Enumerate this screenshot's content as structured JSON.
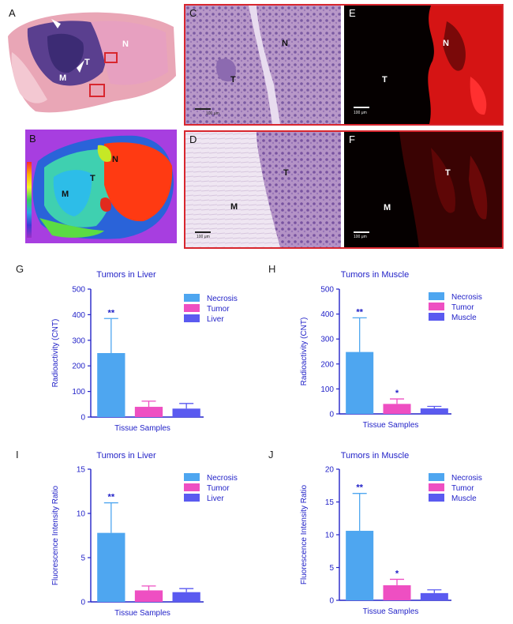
{
  "image_panels": {
    "A": {
      "letter": "A",
      "labels": {
        "N": "N",
        "T": "T",
        "M": "M"
      }
    },
    "B": {
      "letter": "B",
      "labels": {
        "N": "N",
        "T": "T",
        "M": "M"
      }
    },
    "C": {
      "letter": "C",
      "labels": {
        "N": "N",
        "T": "T"
      },
      "scale": "100 μm"
    },
    "D": {
      "letter": "D",
      "labels": {
        "T": "T",
        "M": "M"
      },
      "scale": "100 μm"
    },
    "E": {
      "letter": "E",
      "labels": {
        "N": "N",
        "T": "T"
      },
      "scale": "100 μm"
    },
    "F": {
      "letter": "F",
      "labels": {
        "T": "T",
        "M": "M"
      },
      "scale": "100 μm"
    }
  },
  "colors": {
    "necrosis": "#4ea6f0",
    "tumor": "#ee4fc2",
    "organ": "#5a5af0",
    "axis": "#2323c8",
    "frame": "#d8262e"
  },
  "chart_data": [
    {
      "panel": "G",
      "type": "bar",
      "title": "Tumors in Liver",
      "xlabel": "Tissue Samples",
      "ylabel": "Radioactivity (CNT)",
      "ylim": [
        0,
        500
      ],
      "yticks": [
        0,
        100,
        200,
        300,
        400,
        500
      ],
      "categories": [
        "Necrosis",
        "Tumor",
        "Liver"
      ],
      "values": [
        250,
        40,
        33
      ],
      "errors": [
        135,
        22,
        20
      ],
      "significance": [
        "**",
        "",
        ""
      ]
    },
    {
      "panel": "H",
      "type": "bar",
      "title": "Tumors in Muscle",
      "xlabel": "Tissue Samples",
      "ylabel": "Radioactivity (CNT)",
      "ylim": [
        0,
        500
      ],
      "yticks": [
        0,
        100,
        200,
        300,
        400,
        500
      ],
      "categories": [
        "Necrosis",
        "Tumor",
        "Muscle"
      ],
      "values": [
        248,
        40,
        22
      ],
      "errors": [
        137,
        20,
        8
      ],
      "significance": [
        "**",
        "*",
        ""
      ]
    },
    {
      "panel": "I",
      "type": "bar",
      "title": "Tumors in Liver",
      "xlabel": "Tissue Samples",
      "ylabel": "Fluorescence Intensity Ratio",
      "ylim": [
        0,
        15
      ],
      "yticks": [
        0,
        5,
        10,
        15
      ],
      "categories": [
        "Necrosis",
        "Tumor",
        "Liver"
      ],
      "values": [
        7.8,
        1.3,
        1.1
      ],
      "errors": [
        3.4,
        0.5,
        0.4
      ],
      "significance": [
        "**",
        "",
        ""
      ]
    },
    {
      "panel": "J",
      "type": "bar",
      "title": "Tumors in Muscle",
      "xlabel": "Tissue Samples",
      "ylabel": "Fluorescence Intensity Ratio",
      "ylim": [
        0,
        20
      ],
      "yticks": [
        0,
        5,
        10,
        15,
        20
      ],
      "categories": [
        "Necrosis",
        "Tumor",
        "Muscle"
      ],
      "values": [
        10.6,
        2.3,
        1.1
      ],
      "errors": [
        5.7,
        0.9,
        0.5
      ],
      "significance": [
        "**",
        "*",
        ""
      ]
    }
  ]
}
